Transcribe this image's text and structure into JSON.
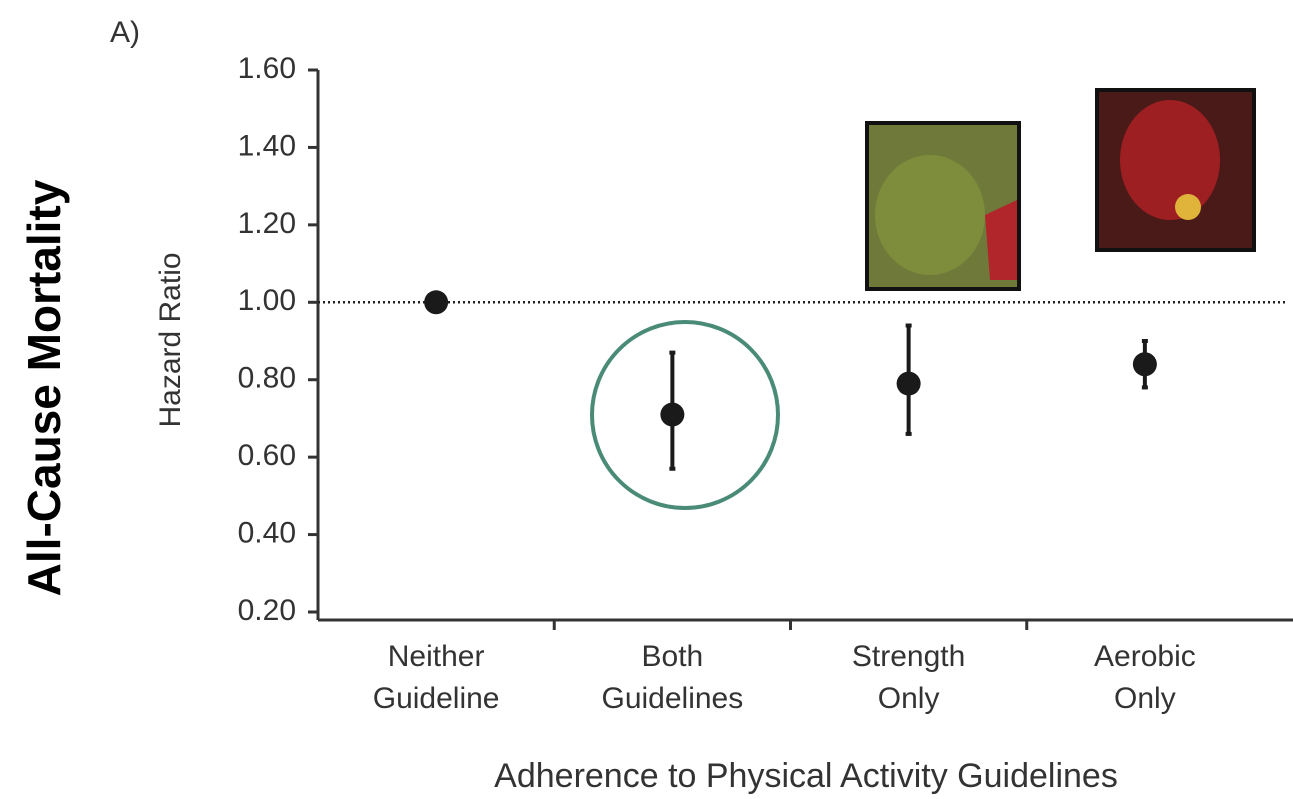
{
  "chart_data": {
    "type": "errorbar",
    "panel_label": "A)",
    "side_title": "All-Cause Mortality",
    "y_label": "Hazard Ratio",
    "x_label": "Adherence to Physical Activity Guidelines",
    "categories": [
      [
        "Neither",
        "Guideline"
      ],
      [
        "Both",
        "Guidelines"
      ],
      [
        "Strength",
        "Only"
      ],
      [
        "Aerobic",
        "Only"
      ]
    ],
    "values": [
      1.0,
      0.71,
      0.79,
      0.84
    ],
    "lower": [
      null,
      0.57,
      0.66,
      0.78
    ],
    "upper": [
      null,
      0.87,
      0.94,
      0.9
    ],
    "color": "#1a1a1a",
    "reference_line": 1.0,
    "ylim": [
      0.2,
      1.6
    ],
    "yticks": [
      {
        "value": 0.2,
        "label": "0.20"
      },
      {
        "value": 0.4,
        "label": "0.40"
      },
      {
        "value": 0.6,
        "label": "0.60"
      },
      {
        "value": 0.8,
        "label": "0.80"
      },
      {
        "value": 1.0,
        "label": "1.00"
      },
      {
        "value": 1.2,
        "label": "1.20"
      },
      {
        "value": 1.4,
        "label": "1.40"
      },
      {
        "value": 1.6,
        "label": "1.60"
      }
    ]
  }
}
